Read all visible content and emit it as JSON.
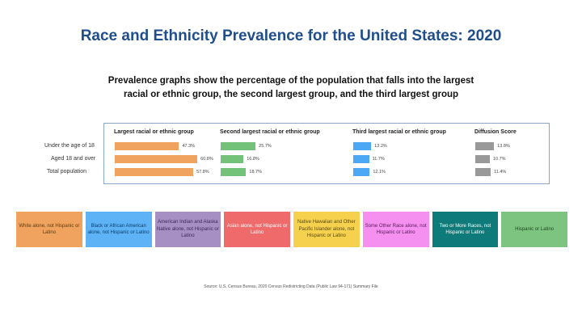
{
  "chart_data": {
    "type": "bar",
    "title": "Race and Ethnicity Prevalence for the United States: 2020",
    "subtitle_lines": [
      "Prevalence graphs show the percentage of the population that falls into the largest",
      "racial or ethnic group, the second largest group, and the third largest group"
    ],
    "categories": [
      "Under the age of 18",
      "Aged 18 and over",
      "Total population"
    ],
    "series": [
      {
        "name": "Largest racial or ethnic group",
        "color": "#f0a35e",
        "values": [
          47.3,
          60.8,
          57.8
        ],
        "labels": [
          "47.3%",
          "60.8%",
          "57.8%"
        ]
      },
      {
        "name": "Second largest racial or ethnic group",
        "color": "#72c27a",
        "values": [
          25.7,
          16.8,
          18.7
        ],
        "labels": [
          "25.7%",
          "16.8%",
          "18.7%"
        ]
      },
      {
        "name": "Third largest racial or ethnic group",
        "color": "#4aa8f5",
        "values": [
          13.2,
          11.7,
          12.1
        ],
        "labels": [
          "13.2%",
          "11.7%",
          "12.1%"
        ]
      },
      {
        "name": "Diffusion Score",
        "color": "#999999",
        "values": [
          13.8,
          10.7,
          11.4
        ],
        "labels": [
          "13.8%",
          "10.7%",
          "11.4%"
        ]
      }
    ],
    "legend": [
      {
        "label": "White alone, not Hispanic or Latino",
        "color": "#f0a35e",
        "text_color": "#5a3a10"
      },
      {
        "label": "Black or African American alone, not Hispanic or Latino",
        "color": "#5db3f5",
        "text_color": "#0b3d6e"
      },
      {
        "label": "American Indian and Alaska Native alone, not Hispanic or Latino",
        "color": "#a68fc2",
        "text_color": "#3a2a5a"
      },
      {
        "label": "Asian alone, not Hispanic or Latino",
        "color": "#ef6b6b",
        "text_color": "#ffffff"
      },
      {
        "label": "Native Hawaiian and Other Pacific Islander alone, not Hispanic or Latino",
        "color": "#f5d14e",
        "text_color": "#5a4a10"
      },
      {
        "label": "Some Other Race alone, not Hispanic or Latino",
        "color": "#f58ff0",
        "text_color": "#5a1a5a"
      },
      {
        "label": "Two or More Races, not Hispanic or Latino",
        "color": "#0f7a7a",
        "text_color": "#ffffff"
      },
      {
        "label": "Hispanic or Latino",
        "color": "#7cc47f",
        "text_color": "#1f4a20"
      }
    ],
    "source": "Source: U.S. Census Bureau, 2020 Census Redistricting Data (Public Law 94-171) Summary File"
  }
}
